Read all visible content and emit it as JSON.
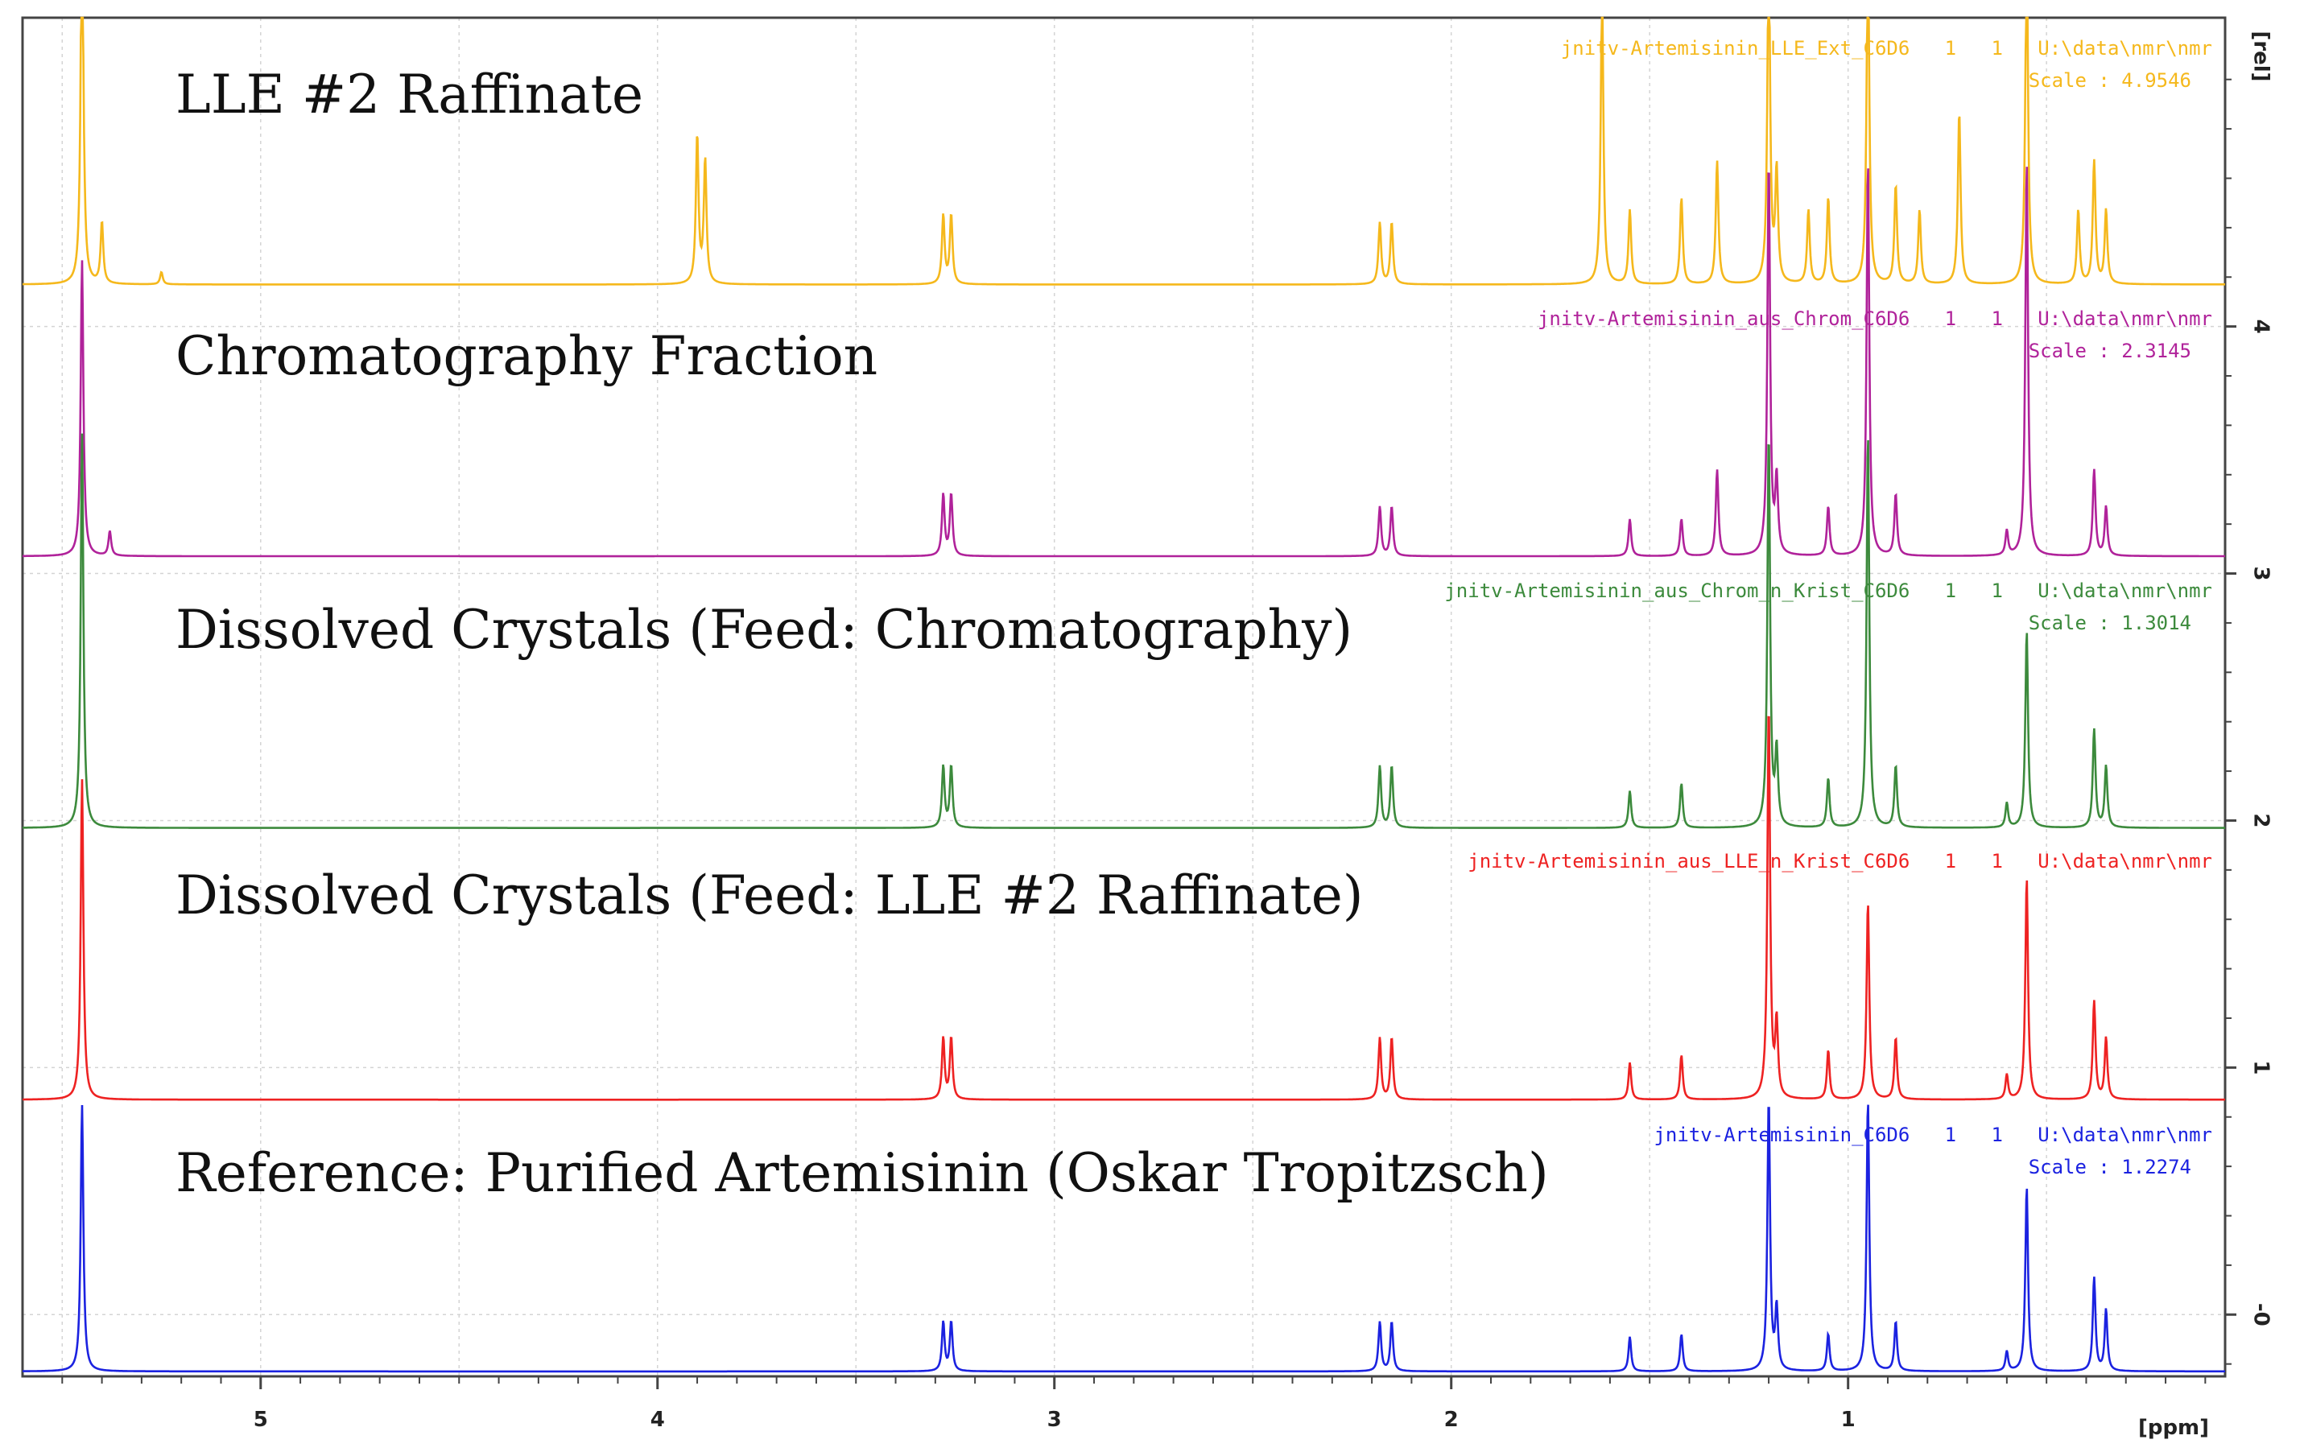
{
  "chart_data": {
    "type": "line",
    "title": "",
    "xlabel": "[ppm]",
    "ylabel": "[rel]",
    "xlim": [
      5.6,
      0.05
    ],
    "ylim": [
      -0.25,
      5.25
    ],
    "x_ticks": [
      "5",
      "4",
      "3",
      "2",
      "1"
    ],
    "y_ticks": [
      "-0",
      "1",
      "2",
      "3",
      "4"
    ],
    "grid": true,
    "series": [
      {
        "name": "LLE #2 Raffinate",
        "file": "jnitv-Artemisinin_LLE_Ext_C6D6   1   1   U:\\data\\nmr\\nmr",
        "scale": "Scale : 4.9546",
        "color": "#f5b81c",
        "baseline": 4.17,
        "peaks": [
          [
            5.45,
            1.6
          ],
          [
            5.4,
            0.25
          ],
          [
            5.25,
            0.05
          ],
          [
            3.9,
            0.6
          ],
          [
            3.88,
            0.5
          ],
          [
            3.28,
            0.28
          ],
          [
            3.26,
            0.28
          ],
          [
            2.18,
            0.25
          ],
          [
            2.15,
            0.25
          ],
          [
            1.62,
            1.2
          ],
          [
            1.55,
            0.3
          ],
          [
            1.42,
            0.35
          ],
          [
            1.33,
            0.5
          ],
          [
            1.2,
            1.4
          ],
          [
            1.18,
            0.45
          ],
          [
            1.1,
            0.3
          ],
          [
            1.05,
            0.35
          ],
          [
            0.95,
            1.4
          ],
          [
            0.88,
            0.4
          ],
          [
            0.82,
            0.3
          ],
          [
            0.72,
            0.7
          ],
          [
            0.55,
            1.4
          ],
          [
            0.42,
            0.3
          ],
          [
            0.38,
            0.5
          ],
          [
            0.35,
            0.3
          ]
        ]
      },
      {
        "name": "Chromatography Fraction",
        "file": "jnitv-Artemisinin_aus_Chrom_C6D6   1   1   U:\\data\\nmr\\nmr",
        "scale": "Scale : 2.3145",
        "color": "#b0229a",
        "baseline": 3.07,
        "peaks": [
          [
            5.45,
            1.2
          ],
          [
            5.38,
            0.1
          ],
          [
            3.28,
            0.25
          ],
          [
            3.26,
            0.25
          ],
          [
            2.18,
            0.2
          ],
          [
            2.15,
            0.2
          ],
          [
            1.55,
            0.15
          ],
          [
            1.42,
            0.15
          ],
          [
            1.33,
            0.35
          ],
          [
            1.2,
            1.6
          ],
          [
            1.18,
            0.3
          ],
          [
            1.05,
            0.2
          ],
          [
            0.95,
            1.6
          ],
          [
            0.88,
            0.25
          ],
          [
            0.6,
            0.1
          ],
          [
            0.55,
            1.6
          ],
          [
            0.38,
            0.35
          ],
          [
            0.35,
            0.2
          ]
        ]
      },
      {
        "name": "Dissolved Crystals (Feed: Chromatography)",
        "file": "jnitv-Artemisinin_aus_Chrom_n_Krist_C6D6   1   1   U:\\data\\nmr\\nmr",
        "scale": "Scale : 1.3014",
        "color": "#3c8a3c",
        "baseline": 1.97,
        "peaks": [
          [
            5.45,
            1.6
          ],
          [
            3.28,
            0.25
          ],
          [
            3.26,
            0.25
          ],
          [
            2.18,
            0.25
          ],
          [
            2.15,
            0.25
          ],
          [
            1.55,
            0.15
          ],
          [
            1.42,
            0.18
          ],
          [
            1.2,
            1.6
          ],
          [
            1.18,
            0.3
          ],
          [
            1.05,
            0.2
          ],
          [
            0.95,
            1.6
          ],
          [
            0.88,
            0.25
          ],
          [
            0.6,
            0.1
          ],
          [
            0.55,
            0.8
          ],
          [
            0.38,
            0.4
          ],
          [
            0.35,
            0.25
          ]
        ]
      },
      {
        "name": "Dissolved Crystals (Feed: LLE #2 Raffinate)",
        "file": "jnitv-Artemisinin_aus_LLE_n_Krist_C6D6   1   1   U:\\data\\nmr\\nmr",
        "scale": "",
        "color": "#ee2222",
        "baseline": 0.87,
        "peaks": [
          [
            5.45,
            1.3
          ],
          [
            3.28,
            0.25
          ],
          [
            3.26,
            0.25
          ],
          [
            2.18,
            0.25
          ],
          [
            2.15,
            0.25
          ],
          [
            1.55,
            0.15
          ],
          [
            1.42,
            0.18
          ],
          [
            1.2,
            1.6
          ],
          [
            1.18,
            0.3
          ],
          [
            1.05,
            0.2
          ],
          [
            0.95,
            0.8
          ],
          [
            0.88,
            0.25
          ],
          [
            0.6,
            0.1
          ],
          [
            0.55,
            0.9
          ],
          [
            0.38,
            0.4
          ],
          [
            0.35,
            0.25
          ]
        ]
      },
      {
        "name": "Reference: Purified Artemisinin (Oskar Tropitzsch)",
        "file": "jnitv-Artemisinin_C6D6   1   1   U:\\data\\nmr\\nmr",
        "scale": "Scale : 1.2274",
        "color": "#1b22e0",
        "baseline": -0.23,
        "peaks": [
          [
            5.45,
            1.08
          ],
          [
            3.28,
            0.2
          ],
          [
            3.26,
            0.2
          ],
          [
            2.18,
            0.2
          ],
          [
            2.15,
            0.2
          ],
          [
            1.55,
            0.14
          ],
          [
            1.42,
            0.15
          ],
          [
            1.2,
            1.1
          ],
          [
            1.18,
            0.25
          ],
          [
            1.05,
            0.15
          ],
          [
            0.95,
            1.1
          ],
          [
            0.88,
            0.2
          ],
          [
            0.6,
            0.08
          ],
          [
            0.55,
            0.75
          ],
          [
            0.38,
            0.38
          ],
          [
            0.35,
            0.25
          ]
        ]
      }
    ]
  }
}
